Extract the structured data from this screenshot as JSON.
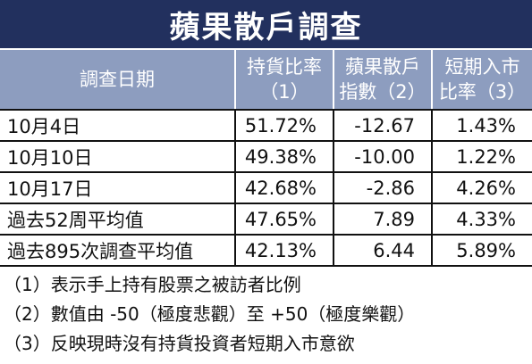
{
  "title": "蘋果散戶調查",
  "table": {
    "header": [
      [
        "調查日期"
      ],
      [
        "持貨比率",
        "（1）"
      ],
      [
        "蘋果散戶",
        "指數（2）"
      ],
      [
        "短期入市",
        "比率（3）"
      ]
    ],
    "rows": [
      [
        "10月4日",
        "51.72%",
        "-12.67",
        "1.43%"
      ],
      [
        "10月10日",
        "49.38%",
        "-10.00",
        "1.22%"
      ],
      [
        "10月17日",
        "42.68%",
        "-2.86",
        "4.26%"
      ],
      [
        "過去52周平均值",
        "47.65%",
        "7.89",
        "4.33%"
      ],
      [
        "過去895次調查平均值",
        "42.13%",
        "6.44",
        "5.89%"
      ]
    ]
  },
  "notes": [
    "（1）表示手上持有股票之被訪者比例",
    "（2）數值由 -50（極度悲觀）至 +50（極度樂觀）",
    "（3）反映現時沒有持貨投資者短期入市意欲"
  ]
}
